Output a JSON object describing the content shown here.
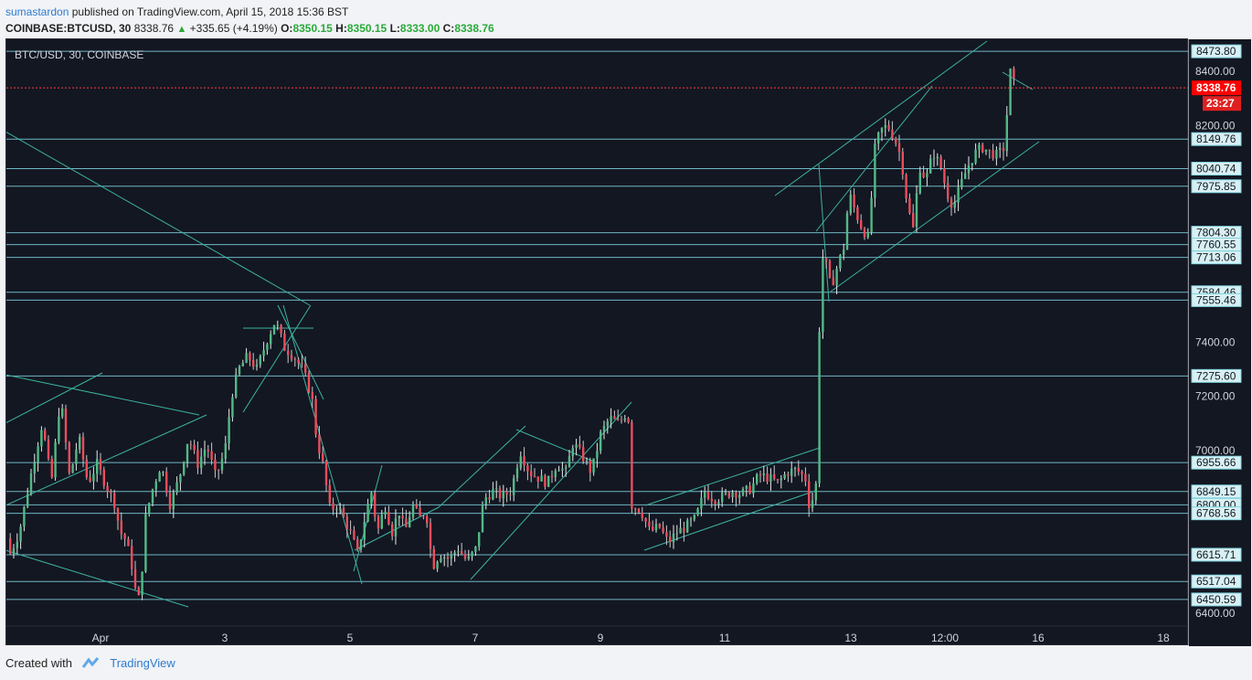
{
  "header": {
    "user": "sumastardon",
    "published": "published on TradingView.com, April 15, 2018 15:36 BST"
  },
  "ohlc": {
    "symbol": "COINBASE:BTCUSD, 30",
    "last": "8338.76",
    "change": "+335.65 (+4.19%)",
    "o_label": "O:",
    "o": "8350.15",
    "h_label": "H:",
    "h": "8350.15",
    "l_label": "L:",
    "l": "8333.00",
    "c_label": "C:",
    "c": "8338.76"
  },
  "chart_title": "BTC/USD, 30, COINBASE",
  "footer": {
    "created": "Created with",
    "brand": "TradingView"
  },
  "colors": {
    "background": "#131722",
    "up": "#53b987",
    "down": "#eb4d5c",
    "hline": "#7fd3e0",
    "trend": "#3bb3a0",
    "price_tag": "#ff0000"
  },
  "chart_data": {
    "type": "candlestick",
    "x_ticks": [
      "Apr",
      "3",
      "5",
      "7",
      "9",
      "11",
      "13",
      "12:00",
      "16",
      "18"
    ],
    "y_ticks": [
      6400,
      7000,
      7200,
      7400,
      8200,
      8400
    ],
    "y_ticks_labels": [
      "6400.00",
      "7000.00",
      "7200.00",
      "7400.00",
      "8200.00",
      "8400.00"
    ],
    "ylim": [
      6360,
      8500
    ],
    "last_price": 8338.76,
    "last_price_label": "8338.76",
    "countdown": "23:27",
    "horizontal_levels": [
      8473.8,
      8149.76,
      8040.74,
      7975.85,
      7804.3,
      7760.55,
      7713.06,
      7584.46,
      7555.46,
      7275.6,
      6955.66,
      6849.15,
      6800.0,
      6768.56,
      6615.71,
      6517.04,
      6450.59
    ],
    "horizontal_level_labels": [
      "8473.80",
      "8149.76",
      "8040.74",
      "7975.85",
      "7804.30",
      "7760.55",
      "7713.06",
      "7584.46",
      "7555.46",
      "7275.60",
      "6955.66",
      "6849.15",
      "6800.00",
      "6768.56",
      "6615.71",
      "6517.04",
      "6450.59"
    ],
    "price_path": [
      [
        0,
        6900
      ],
      [
        10,
        6620
      ],
      [
        20,
        6700
      ],
      [
        35,
        6950
      ],
      [
        45,
        7100
      ],
      [
        55,
        6880
      ],
      [
        65,
        7200
      ],
      [
        75,
        6900
      ],
      [
        85,
        7050
      ],
      [
        95,
        6880
      ],
      [
        105,
        6950
      ],
      [
        115,
        6870
      ],
      [
        125,
        6800
      ],
      [
        130,
        6700
      ],
      [
        135,
        6680
      ],
      [
        142,
        6600
      ],
      [
        148,
        6460
      ],
      [
        152,
        6450
      ],
      [
        158,
        6750
      ],
      [
        165,
        6850
      ],
      [
        175,
        6950
      ],
      [
        185,
        6800
      ],
      [
        195,
        6900
      ],
      [
        205,
        7050
      ],
      [
        215,
        6950
      ],
      [
        225,
        7020
      ],
      [
        235,
        6900
      ],
      [
        245,
        7000
      ],
      [
        252,
        7200
      ],
      [
        260,
        7300
      ],
      [
        270,
        7350
      ],
      [
        280,
        7300
      ],
      [
        290,
        7400
      ],
      [
        300,
        7480
      ],
      [
        310,
        7380
      ],
      [
        320,
        7350
      ],
      [
        330,
        7300
      ],
      [
        340,
        7200
      ],
      [
        345,
        7050
      ],
      [
        352,
        6950
      ],
      [
        360,
        6780
      ],
      [
        368,
        6800
      ],
      [
        375,
        6750
      ],
      [
        382,
        6700
      ],
      [
        390,
        6620
      ],
      [
        398,
        6750
      ],
      [
        405,
        6850
      ],
      [
        412,
        6700
      ],
      [
        420,
        6800
      ],
      [
        428,
        6700
      ],
      [
        435,
        6780
      ],
      [
        442,
        6700
      ],
      [
        450,
        6800
      ],
      [
        458,
        6750
      ],
      [
        465,
        6780
      ],
      [
        472,
        6570
      ],
      [
        480,
        6620
      ],
      [
        490,
        6600
      ],
      [
        500,
        6640
      ],
      [
        510,
        6590
      ],
      [
        520,
        6640
      ],
      [
        528,
        6820
      ],
      [
        538,
        6850
      ],
      [
        548,
        6830
      ],
      [
        558,
        6850
      ],
      [
        568,
        7000
      ],
      [
        578,
        6920
      ],
      [
        588,
        6900
      ],
      [
        598,
        6880
      ],
      [
        608,
        6950
      ],
      [
        618,
        6920
      ],
      [
        626,
        7030
      ],
      [
        636,
        6980
      ],
      [
        646,
        6920
      ],
      [
        656,
        7060
      ],
      [
        666,
        7120
      ],
      [
        676,
        7100
      ],
      [
        686,
        7150
      ],
      [
        690,
        6800
      ],
      [
        700,
        6780
      ],
      [
        710,
        6700
      ],
      [
        720,
        6720
      ],
      [
        730,
        6660
      ],
      [
        740,
        6700
      ],
      [
        750,
        6720
      ],
      [
        760,
        6750
      ],
      [
        770,
        6850
      ],
      [
        780,
        6820
      ],
      [
        790,
        6830
      ],
      [
        800,
        6850
      ],
      [
        810,
        6840
      ],
      [
        820,
        6860
      ],
      [
        830,
        6910
      ],
      [
        840,
        6900
      ],
      [
        850,
        6880
      ],
      [
        860,
        6920
      ],
      [
        870,
        6930
      ],
      [
        880,
        6900
      ],
      [
        885,
        6780
      ],
      [
        892,
        6880
      ],
      [
        897,
        7720
      ],
      [
        902,
        7700
      ],
      [
        908,
        7600
      ],
      [
        915,
        7680
      ],
      [
        922,
        7750
      ],
      [
        928,
        7950
      ],
      [
        935,
        7880
      ],
      [
        942,
        7820
      ],
      [
        950,
        7780
      ],
      [
        955,
        8100
      ],
      [
        962,
        8180
      ],
      [
        970,
        8200
      ],
      [
        978,
        8150
      ],
      [
        985,
        8080
      ],
      [
        992,
        7900
      ],
      [
        998,
        7820
      ],
      [
        1005,
        8050
      ],
      [
        1012,
        8000
      ],
      [
        1020,
        8100
      ],
      [
        1028,
        8050
      ],
      [
        1035,
        7950
      ],
      [
        1042,
        7900
      ],
      [
        1050,
        7980
      ],
      [
        1058,
        8050
      ],
      [
        1066,
        8100
      ],
      [
        1074,
        8120
      ],
      [
        1082,
        8100
      ],
      [
        1090,
        8090
      ],
      [
        1098,
        8120
      ],
      [
        1104,
        8400
      ],
      [
        1110,
        8338
      ]
    ],
    "trendlines": [
      [
        [
          6,
          602
        ],
        [
          206,
          664
        ]
      ],
      [
        [
          6,
          410
        ],
        [
          218,
          454
        ]
      ],
      [
        [
          6,
          463
        ],
        [
          112,
          408
        ]
      ],
      [
        [
          6,
          553
        ],
        [
          226,
          454
        ]
      ],
      [
        [
          6,
          144
        ],
        [
          339,
          334
        ]
      ],
      [
        [
          266,
          359
        ],
        [
          343,
          359
        ]
      ],
      [
        [
          266,
          451
        ],
        [
          340,
          334
        ]
      ],
      [
        [
          304,
          334
        ],
        [
          354,
          437
        ]
      ],
      [
        [
          310,
          334
        ],
        [
          396,
          639
        ]
      ],
      [
        [
          387,
          625
        ],
        [
          418,
          509
        ]
      ],
      [
        [
          388,
          602
        ],
        [
          480,
          555
        ]
      ],
      [
        [
          480,
          555
        ],
        [
          575,
          466
        ]
      ],
      [
        [
          515,
          634
        ],
        [
          691,
          440
        ]
      ],
      [
        [
          565,
          470
        ],
        [
          650,
          505
        ]
      ],
      [
        [
          705,
          602
        ],
        [
          892,
          537
        ]
      ],
      [
        [
          706,
          553
        ],
        [
          897,
          490
        ]
      ],
      [
        [
          896,
          180
        ],
        [
          907,
          330
        ]
      ],
      [
        [
          909,
          319
        ],
        [
          1137,
          155
        ]
      ],
      [
        [
          848,
          214
        ],
        [
          1080,
          45
        ]
      ],
      [
        [
          893,
          253
        ],
        [
          1020,
          94
        ]
      ],
      [
        [
          1097,
          79
        ],
        [
          1130,
          98
        ]
      ]
    ]
  }
}
